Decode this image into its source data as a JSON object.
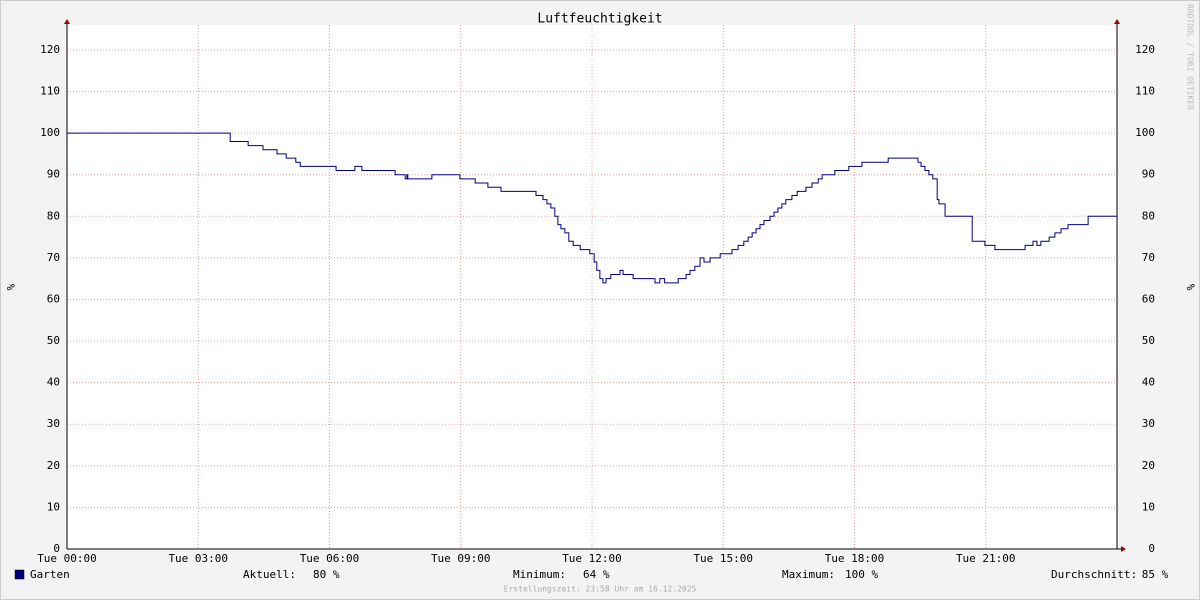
{
  "chart_data": {
    "type": "line",
    "title": "Luftfeuchtigkeit",
    "y_label": "%",
    "step": "post",
    "grid": true,
    "x": [
      0,
      3.73,
      4.14,
      4.48,
      4.8,
      5.01,
      5.23,
      5.33,
      6.15,
      6.58,
      6.74,
      7.5,
      7.73,
      7.77,
      7.79,
      8.34,
      8.98,
      9.33,
      9.62,
      9.92,
      10.72,
      10.88,
      10.97,
      11.06,
      11.15,
      11.22,
      11.29,
      11.38,
      11.47,
      11.57,
      11.73,
      11.95,
      12.05,
      12.11,
      12.18,
      12.25,
      12.32,
      12.43,
      12.64,
      12.71,
      12.94,
      13.44,
      13.55,
      13.66,
      13.97,
      14.15,
      14.24,
      14.35,
      14.47,
      14.56,
      14.7,
      14.93,
      15.2,
      15.34,
      15.47,
      15.57,
      15.66,
      15.75,
      15.84,
      15.93,
      16.07,
      16.16,
      16.25,
      16.34,
      16.43,
      16.57,
      16.69,
      16.89,
      17.03,
      17.17,
      17.26,
      17.55,
      17.87,
      18.17,
      18.77,
      19.45,
      19.52,
      19.61,
      19.7,
      19.79,
      19.89,
      19.93,
      20.07,
      20.69,
      20.98,
      21.21,
      21.9,
      22.08,
      22.17,
      22.26,
      22.45,
      22.58,
      22.72,
      22.88,
      23.34,
      24.0
    ],
    "series": [
      {
        "name": "Garten",
        "color": "#000080",
        "values": [
          100,
          98,
          97,
          96,
          95,
          94,
          93,
          92,
          91,
          92,
          91,
          90,
          89,
          90,
          89,
          90,
          89,
          88,
          87,
          86,
          85,
          84,
          83,
          82,
          80,
          78,
          77,
          76,
          74,
          73,
          72,
          71,
          69,
          67,
          65,
          64,
          65,
          66,
          67,
          66,
          65,
          64,
          65,
          64,
          65,
          66,
          67,
          68,
          70,
          69,
          70,
          71,
          72,
          73,
          74,
          75,
          76,
          77,
          78,
          79,
          80,
          81,
          82,
          83,
          84,
          85,
          86,
          87,
          88,
          89,
          90,
          91,
          92,
          93,
          94,
          93,
          92,
          91,
          90,
          89,
          84,
          83,
          80,
          74,
          73,
          72,
          73,
          74,
          73,
          74,
          75,
          76,
          77,
          78,
          80,
          80
        ]
      }
    ],
    "xlim": [
      0,
      24
    ],
    "ylim": [
      0,
      126
    ],
    "xticks": [
      {
        "value": 0,
        "label": "Tue 00:00"
      },
      {
        "value": 3,
        "label": "Tue 03:00"
      },
      {
        "value": 6,
        "label": "Tue 06:00"
      },
      {
        "value": 9,
        "label": "Tue 09:00"
      },
      {
        "value": 12,
        "label": "Tue 12:00"
      },
      {
        "value": 15,
        "label": "Tue 15:00"
      },
      {
        "value": 18,
        "label": "Tue 18:00"
      },
      {
        "value": 21,
        "label": "Tue 21:00"
      }
    ],
    "yticks": [
      0,
      10,
      20,
      30,
      40,
      50,
      60,
      70,
      80,
      90,
      100,
      110,
      120
    ],
    "stats": [
      {
        "label": "Aktuell:",
        "value": "80 %"
      },
      {
        "label": "Minimum:",
        "value": "64 %"
      },
      {
        "label": "Maximum:",
        "value": "100 %"
      },
      {
        "label": "Durchschnitt:",
        "value": "85 %"
      }
    ],
    "footer": "Erstellungszeit: 23:58 Uhr am 16.12.2025",
    "watermark": "RRDTOOL / TOBI OETIKER"
  }
}
